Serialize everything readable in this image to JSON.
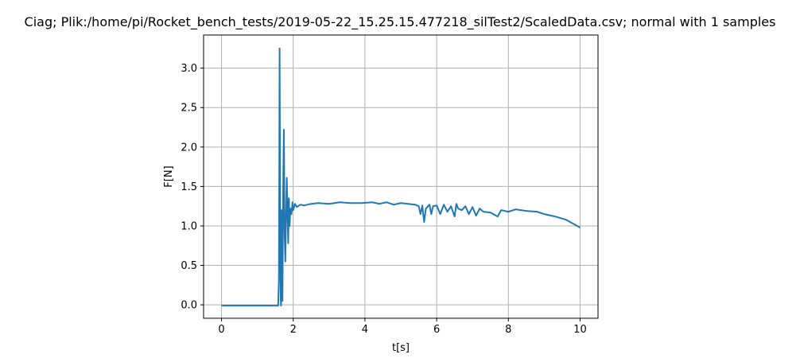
{
  "chart_data": {
    "type": "line",
    "title": "Ciag; Plik:/home/pi/Rocket_bench_tests/2019-05-22_15.25.15.477218_silTest2/ScaledData.csv; normal with 1 samples",
    "xlabel": "t[s]",
    "ylabel": "F[N]",
    "xlim": [
      -0.5,
      10.5
    ],
    "ylim": [
      -0.17,
      3.42
    ],
    "xticks": [
      0,
      2,
      4,
      6,
      8,
      10
    ],
    "yticks": [
      0.0,
      0.5,
      1.0,
      1.5,
      2.0,
      2.5,
      3.0
    ],
    "xtick_labels": [
      "0",
      "2",
      "4",
      "6",
      "8",
      "10"
    ],
    "ytick_labels": [
      "0.0",
      "0.5",
      "1.0",
      "1.5",
      "2.0",
      "2.5",
      "3.0"
    ],
    "grid": true,
    "color": "#1f77b4",
    "series": [
      {
        "x": [
          0.0,
          0.3,
          0.6,
          0.9,
          1.2,
          1.5,
          1.58,
          1.6,
          1.61,
          1.62,
          1.63,
          1.64,
          1.65,
          1.66,
          1.67,
          1.68,
          1.69,
          1.7,
          1.72,
          1.74,
          1.75,
          1.76,
          1.78,
          1.8,
          1.82,
          1.84,
          1.86,
          1.88,
          1.9,
          1.92,
          1.95,
          1.98,
          2.0,
          2.05,
          2.1,
          2.2,
          2.3,
          2.5,
          2.7,
          3.0,
          3.3,
          3.6,
          3.9,
          4.2,
          4.4,
          4.6,
          4.8,
          5.0,
          5.2,
          5.4,
          5.5,
          5.55,
          5.6,
          5.65,
          5.7,
          5.8,
          5.85,
          5.9,
          6.0,
          6.1,
          6.2,
          6.3,
          6.4,
          6.5,
          6.55,
          6.6,
          6.7,
          6.8,
          6.9,
          7.0,
          7.1,
          7.2,
          7.3,
          7.5,
          7.7,
          7.8,
          8.0,
          8.2,
          8.5,
          8.8,
          9.0,
          9.3,
          9.6,
          9.8,
          10.0
        ],
        "y": [
          -0.01,
          -0.01,
          -0.01,
          -0.01,
          -0.01,
          -0.01,
          -0.01,
          0.3,
          1.5,
          3.25,
          2.0,
          0.8,
          0.1,
          -0.01,
          0.4,
          1.2,
          0.8,
          0.05,
          1.5,
          2.22,
          1.6,
          0.9,
          0.55,
          1.1,
          1.61,
          1.2,
          0.78,
          1.35,
          1.0,
          1.22,
          1.15,
          1.3,
          1.2,
          1.28,
          1.24,
          1.27,
          1.26,
          1.28,
          1.29,
          1.28,
          1.3,
          1.29,
          1.29,
          1.3,
          1.28,
          1.3,
          1.27,
          1.29,
          1.28,
          1.27,
          1.25,
          1.15,
          1.26,
          1.05,
          1.22,
          1.27,
          1.15,
          1.25,
          1.26,
          1.15,
          1.27,
          1.18,
          1.25,
          1.12,
          1.28,
          1.22,
          1.2,
          1.25,
          1.15,
          1.24,
          1.13,
          1.22,
          1.18,
          1.17,
          1.12,
          1.2,
          1.18,
          1.21,
          1.19,
          1.18,
          1.15,
          1.12,
          1.08,
          1.03,
          0.98
        ]
      }
    ]
  }
}
